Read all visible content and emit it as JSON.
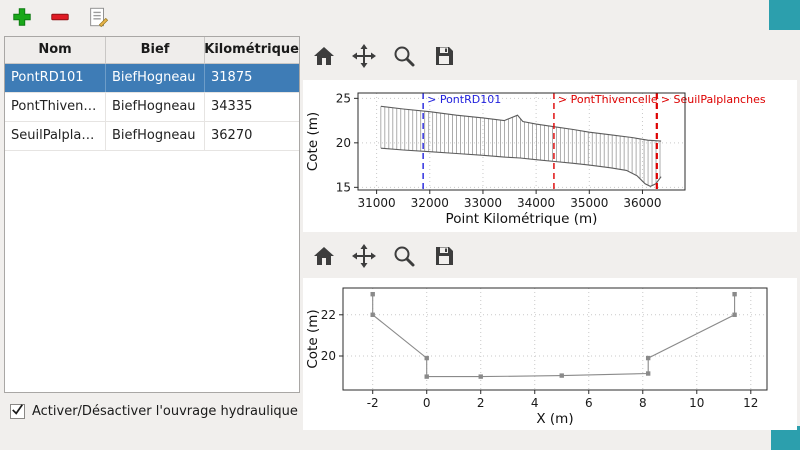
{
  "window": {
    "background": "#f1efed",
    "corner_color": "#2c9fad"
  },
  "main_toolbar": {
    "buttons": [
      {
        "name": "add",
        "icon": "plus-icon",
        "color": "#1aa81a"
      },
      {
        "name": "remove",
        "icon": "minus-icon",
        "color": "#e01b24"
      },
      {
        "name": "edit",
        "icon": "document-edit-icon",
        "color": "#9c9c9c"
      }
    ]
  },
  "table": {
    "columns": [
      "Nom",
      "Bief",
      "Point Kilométrique"
    ],
    "rows": [
      {
        "nom": "PontRD101",
        "bief": "BiefHogneau",
        "pk": "31875",
        "selected": true
      },
      {
        "nom": "PontThivencelle",
        "bief": "BiefHogneau",
        "pk": "34335",
        "selected": false
      },
      {
        "nom": "SeuilPalplanches",
        "bief": "BiefHogneau",
        "pk": "36270",
        "selected": false
      }
    ],
    "selection_color": "#3e7cb6"
  },
  "checkbox": {
    "label": "Activer/Désactiver l'ouvrage hydraulique",
    "checked": true
  },
  "plot_toolbar": {
    "icons": [
      "home-icon",
      "pan-icon",
      "zoom-icon",
      "save-icon"
    ]
  },
  "chart_data": [
    {
      "id": "longitudinal-profile",
      "type": "line",
      "title": "",
      "xlabel": "Point Kilométrique (m)",
      "ylabel": "Cote (m)",
      "xlim": [
        30650,
        36800
      ],
      "ylim": [
        14.7,
        25.6
      ],
      "xticks": [
        31000,
        32000,
        33000,
        34000,
        35000,
        36000
      ],
      "yticks": [
        15,
        20,
        25
      ],
      "grid": true,
      "section_step": 75,
      "series": [
        {
          "name": "berge",
          "color": "#5c5c5c",
          "points": [
            [
              31080,
              24.1
            ],
            [
              31500,
              23.8
            ],
            [
              32000,
              23.5
            ],
            [
              32500,
              23.1
            ],
            [
              33000,
              22.8
            ],
            [
              33400,
              22.5
            ],
            [
              33650,
              23.1
            ],
            [
              33750,
              22.4
            ],
            [
              34000,
              22.1
            ],
            [
              34350,
              21.8
            ],
            [
              34700,
              21.5
            ],
            [
              35000,
              21.2
            ],
            [
              35400,
              20.9
            ],
            [
              35800,
              20.6
            ],
            [
              36100,
              20.3
            ],
            [
              36350,
              20.2
            ]
          ]
        },
        {
          "name": "fond",
          "color": "#5c5c5c",
          "points": [
            [
              31080,
              19.4
            ],
            [
              31500,
              19.2
            ],
            [
              32000,
              19.0
            ],
            [
              32500,
              18.8
            ],
            [
              33000,
              18.6
            ],
            [
              33400,
              18.4
            ],
            [
              33700,
              18.3
            ],
            [
              34000,
              18.1
            ],
            [
              34350,
              17.9
            ],
            [
              34700,
              17.7
            ],
            [
              35000,
              17.5
            ],
            [
              35400,
              17.2
            ],
            [
              35700,
              16.9
            ],
            [
              35900,
              16.3
            ],
            [
              36050,
              15.4
            ],
            [
              36150,
              15.1
            ],
            [
              36250,
              15.4
            ],
            [
              36350,
              16.2
            ]
          ]
        }
      ],
      "markers": [
        {
          "label": "> PontRD101",
          "x": 31875,
          "color": "#2222dd",
          "style": "dashed",
          "width": 1.4
        },
        {
          "label": "> PontThivencelle",
          "x": 34335,
          "color": "#dd0000",
          "style": "dashed",
          "width": 1.4
        },
        {
          "label": "> SeuilPalplanches",
          "x": 36270,
          "color": "#dd0000",
          "style": "dashed",
          "width": 2.2
        }
      ]
    },
    {
      "id": "cross-section",
      "type": "line",
      "title": "",
      "xlabel": "X (m)",
      "ylabel": "Cote (m)",
      "xlim": [
        -3.1,
        12.6
      ],
      "ylim": [
        18.35,
        23.3
      ],
      "xticks": [
        -2,
        0,
        2,
        4,
        6,
        8,
        10,
        12
      ],
      "yticks": [
        20,
        22
      ],
      "grid": true,
      "series": [
        {
          "name": "profil-en-travers",
          "color": "#8a8a8a",
          "marker": "square",
          "points": [
            [
              -2,
              23
            ],
            [
              -2,
              22
            ],
            [
              0,
              19.9
            ],
            [
              0,
              19.0
            ],
            [
              2,
              19.0
            ],
            [
              5,
              19.05
            ],
            [
              8.2,
              19.15
            ],
            [
              8.2,
              19.9
            ],
            [
              11.4,
              22
            ],
            [
              11.4,
              23
            ]
          ]
        }
      ],
      "markers": []
    }
  ]
}
